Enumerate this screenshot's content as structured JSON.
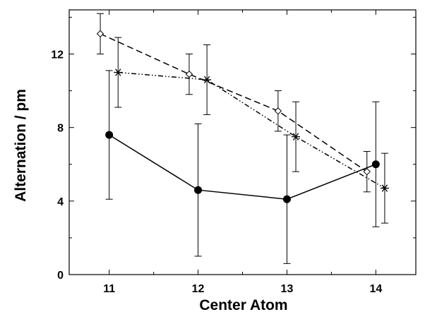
{
  "chart_data": {
    "type": "line",
    "title": "",
    "xlabel": "Center Atom",
    "ylabel": "Alternation / pm",
    "xlim": [
      10.55,
      14.45
    ],
    "ylim": [
      0,
      14.4
    ],
    "xticks": [
      11,
      12,
      13,
      14
    ],
    "xtick_labels": [
      "11",
      "12",
      "13",
      "14"
    ],
    "yticks": [
      0,
      4,
      8,
      12
    ],
    "ytick_labels": [
      "0",
      "4",
      "8",
      "12"
    ],
    "grid": false,
    "legend": null,
    "series": [
      {
        "marker": "open-diamond",
        "line_style": "dashed",
        "color": "#000000",
        "x": [
          10.9,
          11.9,
          12.9,
          13.9
        ],
        "y": [
          13.1,
          10.9,
          8.9,
          5.6
        ],
        "err_low": [
          12.0,
          9.8,
          7.8,
          4.5
        ],
        "err_high": [
          14.2,
          12.0,
          10.0,
          6.7
        ]
      },
      {
        "marker": "asterisk",
        "line_style": "dash-dot-dot",
        "color": "#000000",
        "x": [
          11.1,
          12.1,
          13.1,
          14.1
        ],
        "y": [
          11.0,
          10.6,
          7.5,
          4.7
        ],
        "err_low": [
          9.1,
          8.7,
          5.6,
          2.8
        ],
        "err_high": [
          12.9,
          12.5,
          9.4,
          6.6
        ]
      },
      {
        "marker": "filled-circle",
        "line_style": "solid",
        "color": "#000000",
        "x": [
          11,
          12,
          13,
          14
        ],
        "y": [
          7.6,
          4.6,
          4.1,
          6.0
        ],
        "err_low": [
          4.1,
          1.0,
          0.6,
          2.6
        ],
        "err_high": [
          11.1,
          8.2,
          7.6,
          9.4
        ]
      }
    ]
  }
}
